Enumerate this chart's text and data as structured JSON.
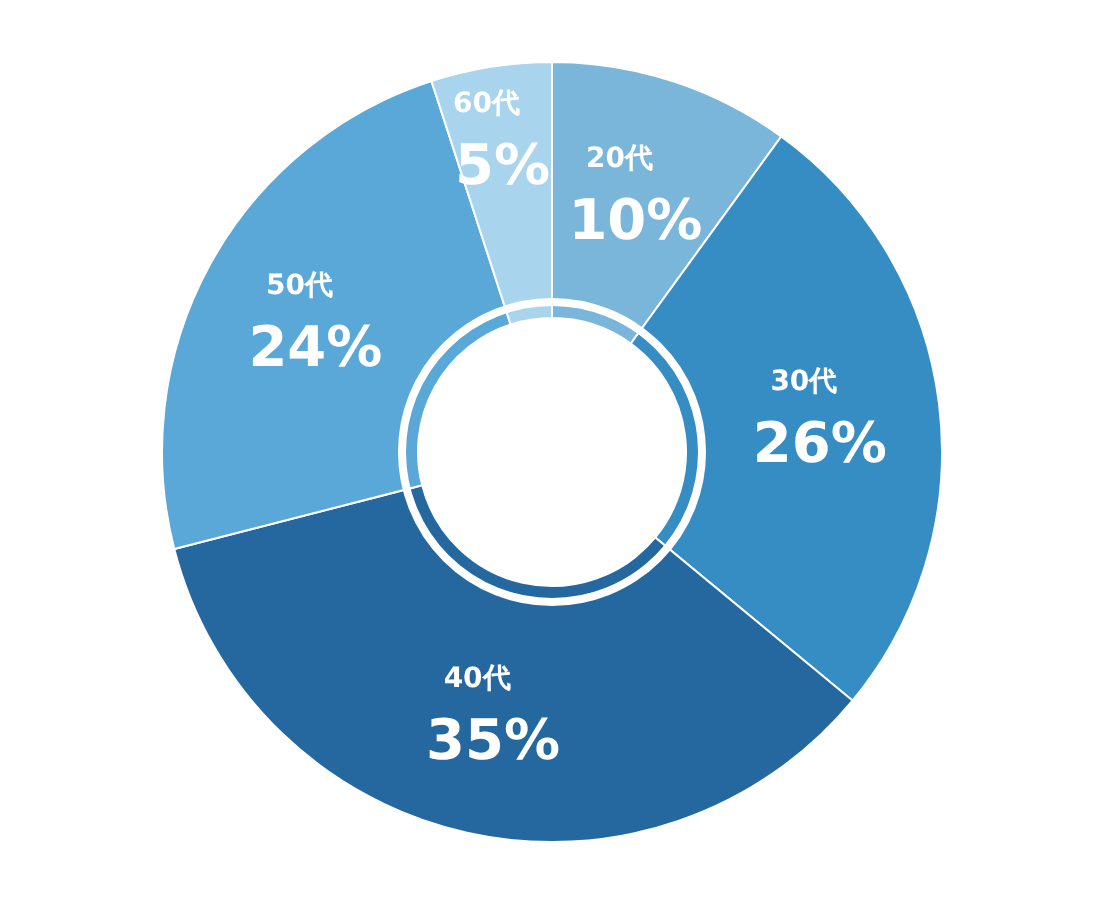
{
  "chart_data": {
    "type": "donut",
    "categories": [
      "20代",
      "30代",
      "40代",
      "50代",
      "60代"
    ],
    "values": [
      10,
      26,
      35,
      24,
      5
    ],
    "value_labels": [
      "10%",
      "26%",
      "35%",
      "24%",
      "5%"
    ],
    "colors": [
      "#7ab6da",
      "#368dc3",
      "#2568a0",
      "#5aa8d8",
      "#a8d4ee"
    ],
    "legend": false
  }
}
